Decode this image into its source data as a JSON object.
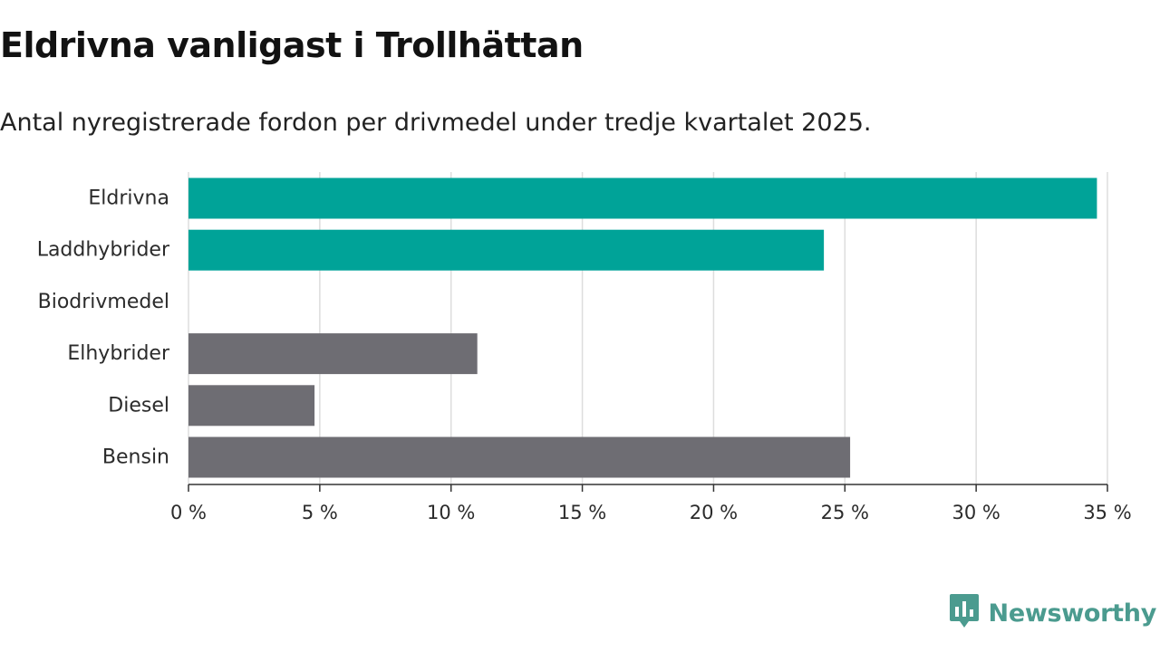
{
  "title": "Eldrivna vanligast i Trollhättan",
  "subtitle": "Antal nyregistrerade fordon per drivmedel under tredje kvartalet 2025.",
  "brand": {
    "name": "Newsworthy",
    "color": "#4b9b8f"
  },
  "colors": {
    "highlight": "#00a398",
    "neutral": "#6e6d73",
    "grid": "#dddddd",
    "axis": "#333333"
  },
  "chart_data": {
    "type": "bar",
    "orientation": "horizontal",
    "categories": [
      "Eldrivna",
      "Laddhybrider",
      "Biodrivmedel",
      "Elhybrider",
      "Diesel",
      "Bensin"
    ],
    "values": [
      34.6,
      24.2,
      0,
      11.0,
      4.8,
      25.2
    ],
    "highlighted": [
      true,
      true,
      false,
      false,
      false,
      false
    ],
    "xlim": [
      0,
      35
    ],
    "ticks": [
      0,
      5,
      10,
      15,
      20,
      25,
      30,
      35
    ],
    "tick_labels": [
      "0 %",
      "5 %",
      "10 %",
      "15 %",
      "20 %",
      "25 %",
      "30 %",
      "35 %"
    ],
    "grid": true,
    "xlabel": "",
    "ylabel": ""
  }
}
